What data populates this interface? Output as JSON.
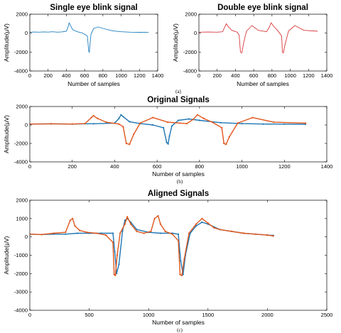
{
  "chart_data": [
    {
      "id": "single",
      "type": "line",
      "title": "Single eye blink signal",
      "xlabel": "Number of samples",
      "ylabel": "Amplitude(μV)",
      "xlim": [
        0,
        1400
      ],
      "ylim": [
        -4000,
        2000
      ],
      "xticks": [
        0,
        200,
        400,
        600,
        800,
        1000,
        1200,
        1400
      ],
      "yticks": [
        -4000,
        -2000,
        0,
        2000
      ],
      "grid": false,
      "caption": "(a)",
      "series": [
        {
          "color": "#1f7fc1",
          "x": [
            0,
            50,
            100,
            150,
            200,
            250,
            300,
            350,
            400,
            420,
            430,
            440,
            470,
            520,
            580,
            630,
            645,
            652,
            658,
            670,
            700,
            750,
            800,
            900,
            1000,
            1100,
            1200,
            1300
          ],
          "y": [
            100,
            120,
            100,
            130,
            110,
            150,
            100,
            130,
            200,
            700,
            1100,
            900,
            350,
            150,
            0,
            -300,
            -1900,
            -2050,
            -1200,
            -100,
            500,
            650,
            500,
            250,
            150,
            100,
            90,
            80
          ]
        }
      ]
    },
    {
      "id": "double",
      "type": "line",
      "title": "Double eye blink signal",
      "xlabel": "Number of samples",
      "ylabel": "Amplitude(μV)",
      "xlim": [
        0,
        1400
      ],
      "ylim": [
        -4000,
        2000
      ],
      "xticks": [
        0,
        200,
        400,
        600,
        800,
        1000,
        1200,
        1400
      ],
      "yticks": [
        -4000,
        -2000,
        0,
        2000
      ],
      "grid": false,
      "caption": "",
      "series": [
        {
          "color": "#d9393b",
          "x": [
            0,
            100,
            200,
            260,
            290,
            300,
            320,
            360,
            420,
            440,
            455,
            470,
            490,
            520,
            580,
            650,
            740,
            770,
            790,
            820,
            860,
            905,
            915,
            925,
            940,
            980,
            1050,
            1150,
            1300
          ],
          "y": [
            100,
            120,
            100,
            150,
            800,
            1000,
            700,
            300,
            100,
            -200,
            -2000,
            -2100,
            -1000,
            200,
            800,
            300,
            150,
            600,
            1100,
            700,
            300,
            -300,
            -2000,
            -2100,
            -1300,
            200,
            800,
            300,
            200
          ]
        }
      ]
    },
    {
      "id": "original",
      "type": "line",
      "title": "Original Signals",
      "xlabel": "Number of samples",
      "ylabel": "Amplitude(μV)",
      "xlim": [
        0,
        1400
      ],
      "ylim": [
        -4000,
        2000
      ],
      "xticks": [
        0,
        200,
        400,
        600,
        800,
        1000,
        1200,
        1400
      ],
      "yticks": [
        -4000,
        -2000,
        0,
        2000
      ],
      "grid": false,
      "caption": "(b)",
      "series": [
        {
          "color": "#1f77b4",
          "x": [
            0,
            100,
            200,
            300,
            400,
            420,
            430,
            440,
            470,
            520,
            580,
            630,
            645,
            652,
            658,
            670,
            700,
            750,
            800,
            900,
            1000,
            1100,
            1200,
            1300
          ],
          "y": [
            100,
            120,
            100,
            130,
            200,
            700,
            1100,
            900,
            350,
            150,
            0,
            -300,
            -1900,
            -2050,
            -1200,
            -100,
            500,
            650,
            500,
            250,
            150,
            100,
            90,
            80
          ]
        },
        {
          "color": "#e0561c",
          "x": [
            0,
            100,
            200,
            260,
            290,
            300,
            320,
            360,
            420,
            440,
            455,
            470,
            490,
            520,
            580,
            650,
            740,
            770,
            790,
            820,
            860,
            905,
            915,
            925,
            940,
            980,
            1050,
            1150,
            1300
          ],
          "y": [
            100,
            120,
            100,
            150,
            800,
            1000,
            700,
            300,
            100,
            -200,
            -2000,
            -2100,
            -1000,
            200,
            800,
            300,
            150,
            600,
            1100,
            700,
            300,
            -300,
            -2000,
            -2100,
            -1300,
            200,
            800,
            300,
            200
          ]
        }
      ]
    },
    {
      "id": "aligned",
      "type": "line",
      "title": "Aligned Signals",
      "xlabel": "Number of samples",
      "ylabel": "Amplitude(μV)",
      "xlim": [
        0,
        2500
      ],
      "ylim": [
        -4000,
        2000
      ],
      "xticks": [
        0,
        500,
        1000,
        1500,
        2000,
        2500
      ],
      "yticks": [
        -4000,
        -3000,
        -2000,
        -1000,
        0,
        1000,
        2000
      ],
      "grid": false,
      "caption": "(c)",
      "series": [
        {
          "color": "#1f77b4",
          "x": [
            0,
            100,
            200,
            300,
            400,
            500,
            600,
            700,
            715,
            730,
            750,
            780,
            800,
            820,
            850,
            900,
            1000,
            1100,
            1200,
            1250,
            1270,
            1290,
            1310,
            1350,
            1400,
            1450,
            1500,
            1600,
            1700,
            1800,
            1900,
            2000,
            2050
          ],
          "y": [
            150,
            130,
            150,
            150,
            200,
            200,
            200,
            200,
            -800,
            -2000,
            -1500,
            300,
            900,
            1000,
            800,
            400,
            250,
            200,
            200,
            150,
            -1300,
            -2050,
            -1000,
            200,
            600,
            800,
            700,
            400,
            300,
            200,
            150,
            100,
            80
          ]
        },
        {
          "color": "#e0561c",
          "x": [
            0,
            100,
            200,
            300,
            340,
            360,
            380,
            420,
            480,
            560,
            640,
            700,
            710,
            720,
            735,
            760,
            800,
            820,
            850,
            900,
            960,
            1020,
            1050,
            1080,
            1100,
            1140,
            1200,
            1250,
            1265,
            1280,
            1300,
            1340,
            1400,
            1450,
            1500,
            1550,
            1600,
            1700,
            1800,
            1900,
            2000,
            2050
          ],
          "y": [
            150,
            130,
            200,
            250,
            900,
            1000,
            600,
            350,
            250,
            200,
            100,
            -300,
            -2050,
            -2100,
            -1000,
            200,
            700,
            1100,
            700,
            300,
            200,
            300,
            1000,
            1150,
            700,
            300,
            150,
            -200,
            -2050,
            -2100,
            -1200,
            200,
            700,
            1000,
            750,
            500,
            400,
            300,
            200,
            150,
            100,
            50
          ]
        }
      ]
    }
  ]
}
